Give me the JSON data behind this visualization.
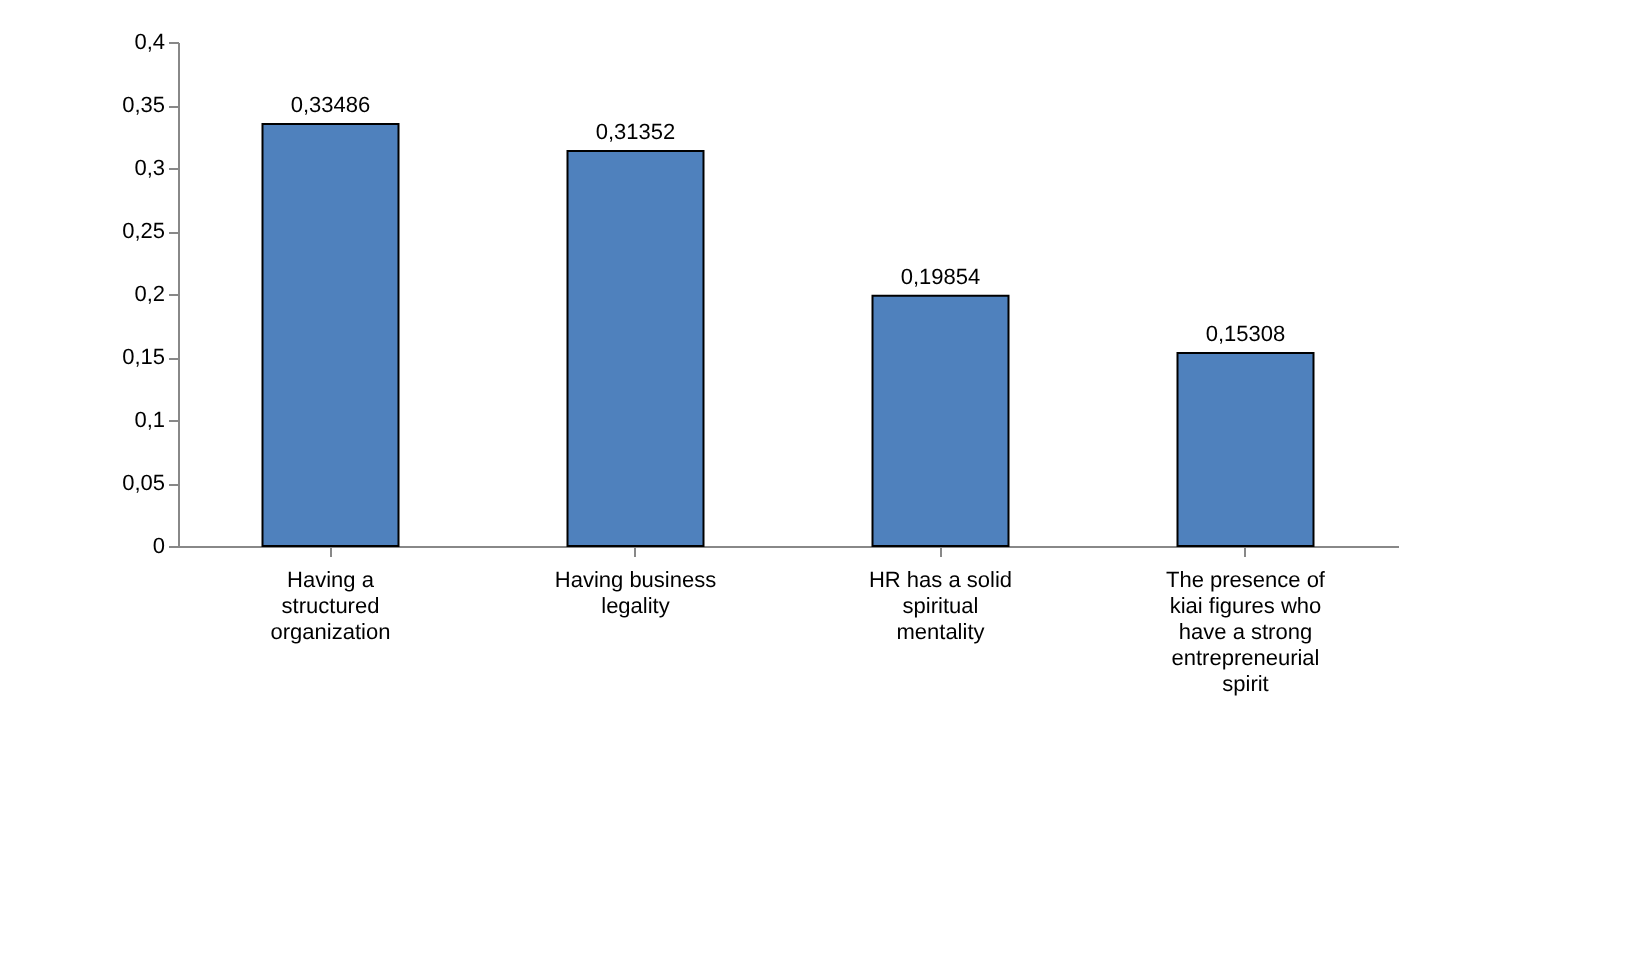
{
  "chart_data": {
    "type": "bar",
    "categories": [
      "Having a structured organization",
      "Having business legality",
      "HR has a solid spiritual mentality",
      "The presence of kiai figures who have a strong entrepreneurial spirit"
    ],
    "values": [
      0.33486,
      0.31352,
      0.19854,
      0.15308
    ],
    "value_labels": [
      "0,33486",
      "0,31352",
      "0,19854",
      "0,15308"
    ],
    "color": "#4f81bd",
    "ylim": [
      0,
      0.4
    ],
    "yticks": [
      {
        "value": 0,
        "label": "0"
      },
      {
        "value": 0.05,
        "label": "0,05"
      },
      {
        "value": 0.1,
        "label": "0,1"
      },
      {
        "value": 0.15,
        "label": "0,15"
      },
      {
        "value": 0.2,
        "label": "0,2"
      },
      {
        "value": 0.25,
        "label": "0,25"
      },
      {
        "value": 0.3,
        "label": "0,3"
      },
      {
        "value": 0.35,
        "label": "0,35"
      },
      {
        "value": 0.4,
        "label": "0,4"
      }
    ],
    "grid": false
  }
}
